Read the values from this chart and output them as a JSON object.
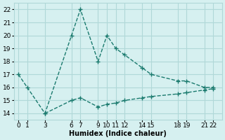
{
  "upper_x": [
    0,
    1,
    3,
    6,
    7,
    9,
    10,
    11,
    12,
    14,
    15,
    18,
    19,
    21,
    22
  ],
  "upper_y": [
    17,
    16,
    14,
    20,
    22,
    18,
    20,
    19,
    18.5,
    17.5,
    17,
    16.5,
    16.5,
    16,
    16
  ],
  "lower_x": [
    3,
    6,
    7,
    9,
    10,
    11,
    12,
    14,
    15,
    18,
    19,
    21,
    22
  ],
  "lower_y": [
    14,
    15,
    15.2,
    14.5,
    14.7,
    14.8,
    15.0,
    15.2,
    15.3,
    15.5,
    15.6,
    15.8,
    15.9
  ],
  "line_color": "#1a7a6e",
  "bg_color": "#d6f0f0",
  "grid_color": "#b0d8d8",
  "xlabel": "Humidex (Indice chaleur)",
  "xlim": [
    -0.5,
    23
  ],
  "ylim": [
    13.5,
    22.5
  ],
  "xticks": [
    0,
    1,
    3,
    6,
    7,
    9,
    10,
    11,
    12,
    14,
    15,
    18,
    19,
    21,
    22
  ],
  "yticks": [
    14,
    15,
    16,
    17,
    18,
    19,
    20,
    21,
    22
  ],
  "title_fontsize": 8,
  "label_fontsize": 7,
  "tick_fontsize": 6.5
}
